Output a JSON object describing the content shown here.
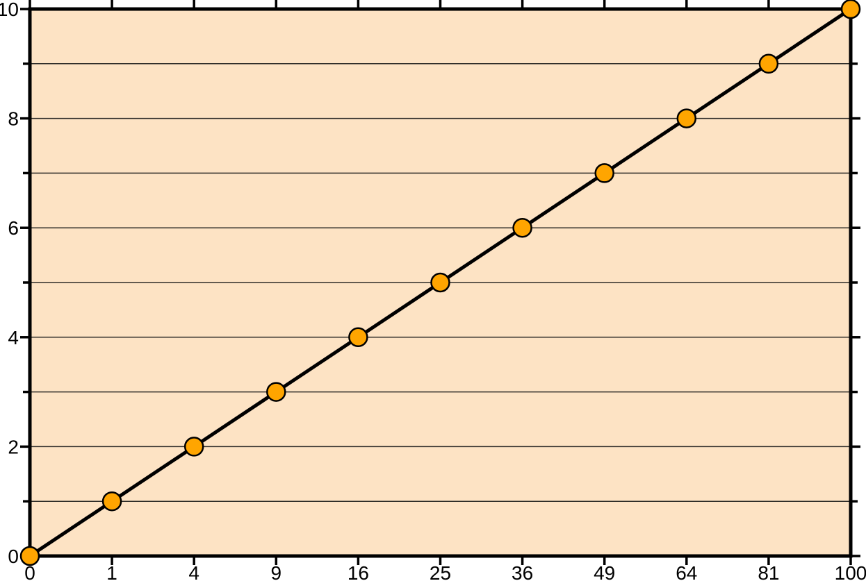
{
  "chart_data": {
    "type": "line",
    "title": "",
    "xlabel": "",
    "ylabel": "",
    "legend": "none",
    "x_scale": "sqrt",
    "xlim": [
      0,
      100
    ],
    "ylim": [
      0,
      10
    ],
    "x": [
      0,
      1,
      4,
      9,
      16,
      25,
      36,
      49,
      64,
      81,
      100
    ],
    "y": [
      0,
      1,
      2,
      3,
      4,
      5,
      6,
      7,
      8,
      9,
      10
    ],
    "relationship": "y = sqrt(x)",
    "marker": "circle",
    "x_tick_values": [
      0,
      1,
      4,
      9,
      16,
      25,
      36,
      49,
      64,
      81,
      100
    ],
    "x_tick_labels": [
      "0",
      "1",
      "4",
      "9",
      "16",
      "25",
      "36",
      "49",
      "64",
      "81",
      "100"
    ],
    "y_major_tick_values": [
      0,
      2,
      4,
      6,
      8,
      10
    ],
    "y_major_tick_labels": [
      "0",
      "2",
      "4",
      "6",
      "8",
      "10"
    ],
    "y_minor_tick_values": [
      1,
      3,
      5,
      7,
      9
    ],
    "grid": "horizontal-only",
    "grid_y_values": [
      1,
      2,
      3,
      4,
      5,
      6,
      7,
      8,
      9
    ],
    "colors": {
      "page_background": "#FFFFFF",
      "plot_background": "#FDE3C4",
      "frame": "#000000",
      "line": "#000000",
      "marker_fill": "#FFA500",
      "marker_stroke": "#000000",
      "grid": "#2E2C28",
      "tick_label": "#000000"
    }
  }
}
